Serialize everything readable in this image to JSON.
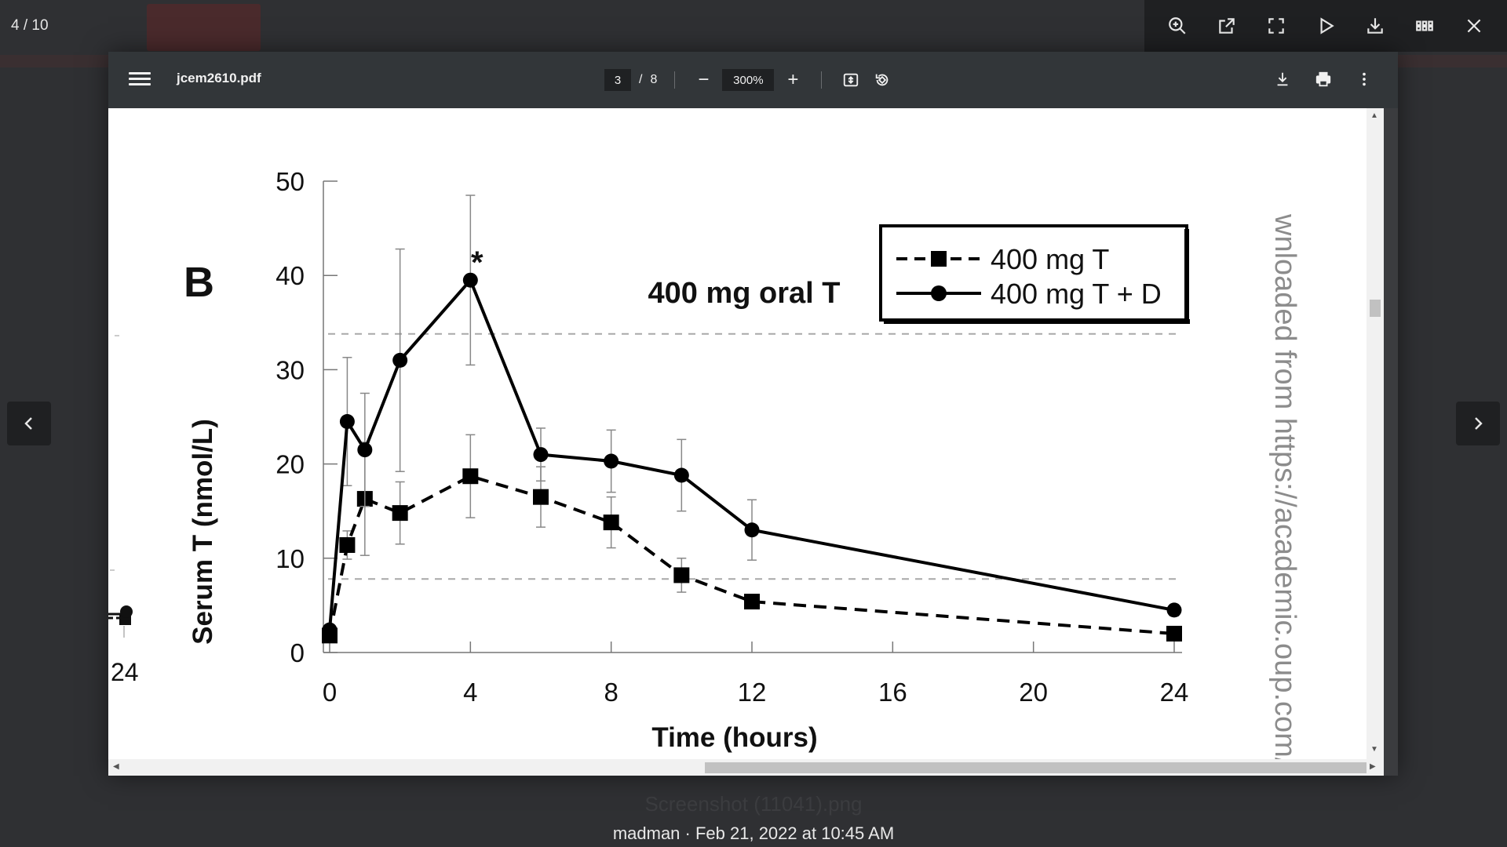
{
  "gallery": {
    "counter": "4 / 10",
    "background_caption": "Screenshot (11041).png",
    "caption": "madman · Feb 21, 2022 at 10:45 AM",
    "tools": [
      "zoom-in-icon",
      "open-external-icon",
      "fullscreen-icon",
      "play-icon",
      "download-icon",
      "grid-icon",
      "close-icon"
    ]
  },
  "pdf": {
    "filename": "jcem2610.pdf",
    "page_current": "3",
    "page_separator": "/",
    "page_total": "8",
    "zoom": "300%",
    "zoom_out": "−",
    "zoom_in": "+"
  },
  "figure": {
    "panel_label": "B",
    "significance_marker": "*",
    "watermark": "wnloaded from https://academic.oup.com/jcem",
    "left_edge_tick": "24"
  },
  "chart_data": {
    "type": "line",
    "title": "400 mg oral T",
    "xlabel": "Time (hours)",
    "ylabel": "Serum T (nmol/L)",
    "xlim": [
      0,
      24
    ],
    "ylim": [
      0,
      50
    ],
    "xticks": [
      0,
      4,
      8,
      12,
      16,
      20,
      24
    ],
    "yticks": [
      0,
      10,
      20,
      30,
      40,
      50
    ],
    "reference_lines": [
      33.8,
      7.8
    ],
    "legend_position": "top-right",
    "series": [
      {
        "name": "400 mg T",
        "style": "dashed",
        "marker": "square",
        "x": [
          0,
          0.5,
          1,
          2,
          4,
          6,
          8,
          10,
          12,
          24
        ],
        "y": [
          1.8,
          11.4,
          16.3,
          14.8,
          18.7,
          16.5,
          13.8,
          8.2,
          5.4,
          2.0
        ],
        "error": [
          0.6,
          1.5,
          6.0,
          3.3,
          4.4,
          3.2,
          2.7,
          1.8,
          0.7,
          0.4
        ]
      },
      {
        "name": "400 mg T + D",
        "style": "solid",
        "marker": "circle",
        "x": [
          0,
          0.5,
          1,
          2,
          4,
          6,
          8,
          10,
          12,
          24
        ],
        "y": [
          2.4,
          24.5,
          21.5,
          31.0,
          39.5,
          21.0,
          20.3,
          18.8,
          13.0,
          4.5
        ],
        "error": [
          0.5,
          6.8,
          6.0,
          11.8,
          9.0,
          2.8,
          3.3,
          3.8,
          3.2,
          0.6
        ]
      }
    ]
  }
}
